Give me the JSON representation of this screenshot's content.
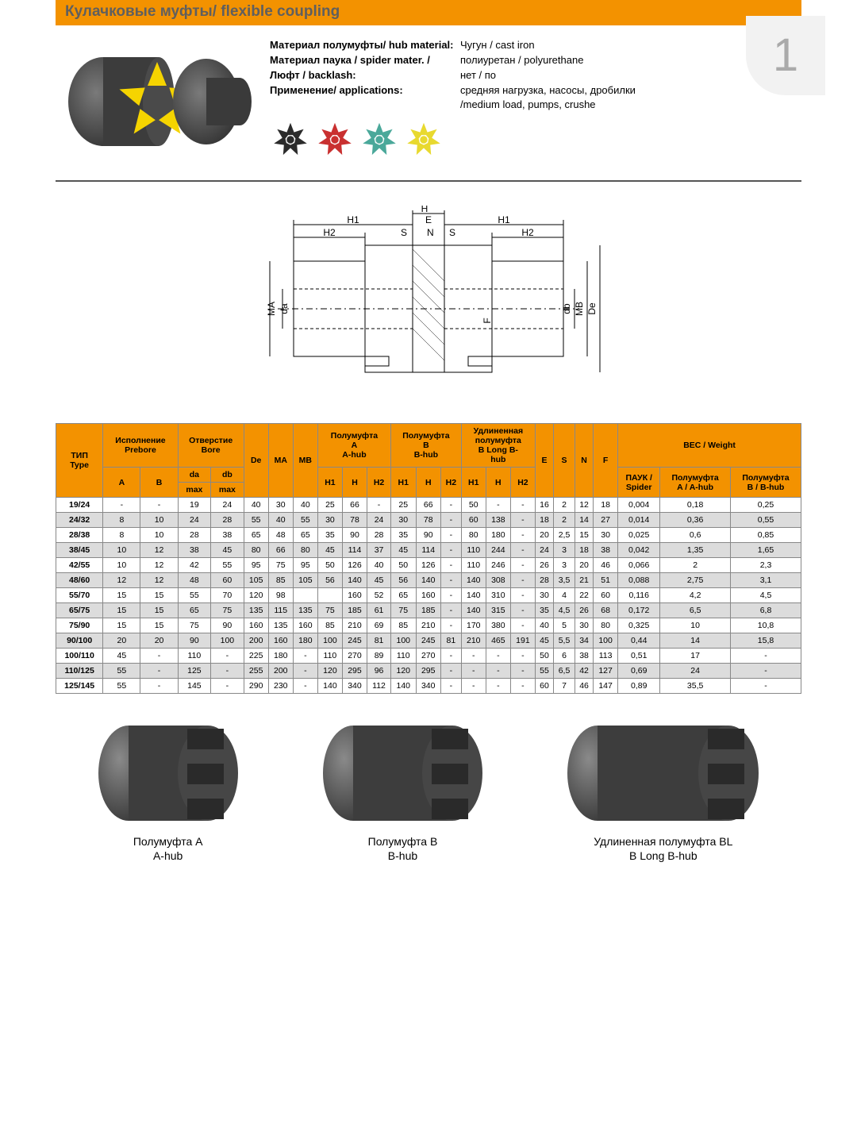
{
  "page_number": "1",
  "title": "Кулачковые муфты/ flexible coupling",
  "colors": {
    "accent": "#f39200",
    "diagram_title": "#5f5f5f",
    "hub": "#4a4a4a",
    "hub_light": "#6a6a6a",
    "spider": "#f5d400"
  },
  "spec_rows": [
    {
      "k": "Материал полумуфты/ hub material:",
      "v": "Чугун / cast iron"
    },
    {
      "k": "Материал паука / spider mater. /",
      "v": "полиуретан / polyurethane"
    },
    {
      "k": "Люфт / backlash:",
      "v": "нет / по"
    },
    {
      "k": "Применение/ applications:",
      "v": "средняя нагрузка, насосы, дробилки /medium load, pumps, crushe"
    }
  ],
  "spider_variants": [
    "#2b2b2b",
    "#c93030",
    "#4aa89a",
    "#e8d92f"
  ],
  "diagram_labels": [
    "H",
    "H1",
    "H1",
    "H2",
    "H2",
    "S",
    "N",
    "S",
    "E",
    "F",
    "da",
    "db",
    "MA",
    "MB",
    "De"
  ],
  "table": {
    "header_rows": [
      [
        {
          "t": "ТИП\nType",
          "rs": 3
        },
        {
          "t": "Исполнение\nPrebore",
          "cs": 2
        },
        {
          "t": "Отверстие\nBore",
          "cs": 2
        },
        {
          "t": "Dе",
          "rs": 3
        },
        {
          "t": "MA",
          "rs": 3
        },
        {
          "t": "MB",
          "rs": 3
        },
        {
          "t": "Полумуфта\nA\nA-hub",
          "cs": 3
        },
        {
          "t": "Полумуфта\nB\nB-hub",
          "cs": 3
        },
        {
          "t": "Удлиненная\nполумуфта\nB Long B-\nhub",
          "cs": 3
        },
        {
          "t": "E",
          "rs": 3
        },
        {
          "t": "S",
          "rs": 3
        },
        {
          "t": "N",
          "rs": 3
        },
        {
          "t": "F",
          "rs": 3
        },
        {
          "t": "ВЕС / Weight",
          "cs": 3
        }
      ],
      [
        {
          "t": "A",
          "rs": 2
        },
        {
          "t": "B",
          "rs": 2
        },
        {
          "t": "da"
        },
        {
          "t": "db"
        },
        {
          "t": "H1",
          "rs": 2
        },
        {
          "t": "H",
          "rs": 2
        },
        {
          "t": "H2",
          "rs": 2
        },
        {
          "t": "H1",
          "rs": 2
        },
        {
          "t": "H",
          "rs": 2
        },
        {
          "t": "H2",
          "rs": 2
        },
        {
          "t": "H1",
          "rs": 2
        },
        {
          "t": "H",
          "rs": 2
        },
        {
          "t": "H2",
          "rs": 2
        },
        {
          "t": "ПАУК /\nSpider",
          "rs": 2
        },
        {
          "t": "Полумуфта\nA / A-hub",
          "rs": 2
        },
        {
          "t": "Полумуфта\nB / B-hub",
          "rs": 2
        }
      ],
      [
        {
          "t": "max"
        },
        {
          "t": "max"
        }
      ]
    ],
    "rows": [
      [
        "19/24",
        "-",
        "-",
        "19",
        "24",
        "40",
        "30",
        "40",
        "25",
        "66",
        "-",
        "25",
        "66",
        "-",
        "50",
        "-",
        "-",
        "16",
        "2",
        "12",
        "18",
        "0,004",
        "0,18",
        "0,25"
      ],
      [
        "24/32",
        "8",
        "10",
        "24",
        "28",
        "55",
        "40",
        "55",
        "30",
        "78",
        "24",
        "30",
        "78",
        "-",
        "60",
        "138",
        "-",
        "18",
        "2",
        "14",
        "27",
        "0,014",
        "0,36",
        "0,55"
      ],
      [
        "28/38",
        "8",
        "10",
        "28",
        "38",
        "65",
        "48",
        "65",
        "35",
        "90",
        "28",
        "35",
        "90",
        "-",
        "80",
        "180",
        "-",
        "20",
        "2,5",
        "15",
        "30",
        "0,025",
        "0,6",
        "0,85"
      ],
      [
        "38/45",
        "10",
        "12",
        "38",
        "45",
        "80",
        "66",
        "80",
        "45",
        "114",
        "37",
        "45",
        "114",
        "-",
        "110",
        "244",
        "-",
        "24",
        "3",
        "18",
        "38",
        "0,042",
        "1,35",
        "1,65"
      ],
      [
        "42/55",
        "10",
        "12",
        "42",
        "55",
        "95",
        "75",
        "95",
        "50",
        "126",
        "40",
        "50",
        "126",
        "-",
        "110",
        "246",
        "-",
        "26",
        "3",
        "20",
        "46",
        "0,066",
        "2",
        "2,3"
      ],
      [
        "48/60",
        "12",
        "12",
        "48",
        "60",
        "105",
        "85",
        "105",
        "56",
        "140",
        "45",
        "56",
        "140",
        "-",
        "140",
        "308",
        "-",
        "28",
        "3,5",
        "21",
        "51",
        "0,088",
        "2,75",
        "3,1"
      ],
      [
        "55/70",
        "15",
        "15",
        "55",
        "70",
        "120",
        "98",
        "",
        "",
        "160",
        "52",
        "65",
        "160",
        "-",
        "140",
        "310",
        "-",
        "30",
        "4",
        "22",
        "60",
        "0,116",
        "4,2",
        "4,5"
      ],
      [
        "65/75",
        "15",
        "15",
        "65",
        "75",
        "135",
        "115",
        "135",
        "75",
        "185",
        "61",
        "75",
        "185",
        "-",
        "140",
        "315",
        "-",
        "35",
        "4,5",
        "26",
        "68",
        "0,172",
        "6,5",
        "6,8"
      ],
      [
        "75/90",
        "15",
        "15",
        "75",
        "90",
        "160",
        "135",
        "160",
        "85",
        "210",
        "69",
        "85",
        "210",
        "-",
        "170",
        "380",
        "-",
        "40",
        "5",
        "30",
        "80",
        "0,325",
        "10",
        "10,8"
      ],
      [
        "90/100",
        "20",
        "20",
        "90",
        "100",
        "200",
        "160",
        "180",
        "100",
        "245",
        "81",
        "100",
        "245",
        "81",
        "210",
        "465",
        "191",
        "45",
        "5,5",
        "34",
        "100",
        "0,44",
        "14",
        "15,8"
      ],
      [
        "100/110",
        "45",
        "-",
        "110",
        "-",
        "225",
        "180",
        "-",
        "110",
        "270",
        "89",
        "110",
        "270",
        "-",
        "-",
        "-",
        "-",
        "50",
        "6",
        "38",
        "113",
        "0,51",
        "17",
        "-"
      ],
      [
        "110/125",
        "55",
        "-",
        "125",
        "-",
        "255",
        "200",
        "-",
        "120",
        "295",
        "96",
        "120",
        "295",
        "-",
        "-",
        "-",
        "-",
        "55",
        "6,5",
        "42",
        "127",
        "0,69",
        "24",
        "-"
      ],
      [
        "125/145",
        "55",
        "-",
        "145",
        "-",
        "290",
        "230",
        "-",
        "140",
        "340",
        "112",
        "140",
        "340",
        "-",
        "-",
        "-",
        "-",
        "60",
        "7",
        "46",
        "147",
        "0,89",
        "35,5",
        "-"
      ]
    ]
  },
  "bottom_items": [
    {
      "title1": "Полумуфта A",
      "title2": "A-hub",
      "body_w": 120
    },
    {
      "title1": "Полумуфта B",
      "title2": "B-hub",
      "body_w": 145
    },
    {
      "title1": "Удлинeнная полумуфта BL",
      "title2": "B Long B-hub",
      "body_w": 185
    }
  ]
}
